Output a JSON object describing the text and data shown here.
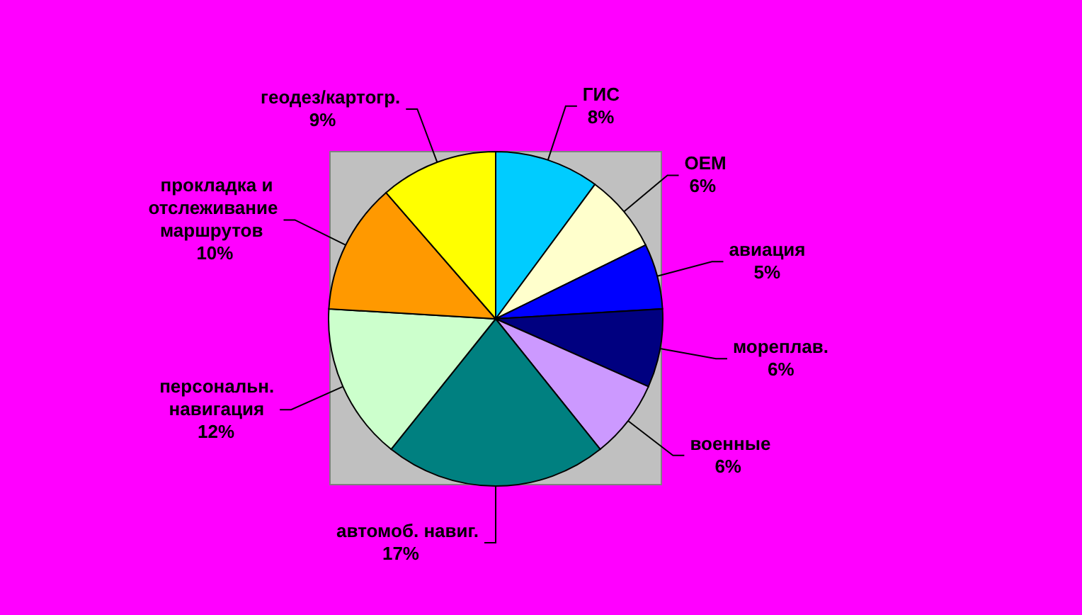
{
  "chart_data": {
    "type": "pie",
    "categories": [
      "ГИС",
      "OEM",
      "авиация",
      "мореплав.",
      "военные",
      "автомоб. навиг.",
      "персональн. навигация",
      "прокладка и отслеживание маршрутов",
      "геодез/картогр."
    ],
    "values": [
      8,
      6,
      5,
      6,
      6,
      17,
      12,
      10,
      9
    ],
    "value_labels": [
      "8%",
      "6%",
      "5%",
      "6%",
      "6%",
      "17%",
      "12%",
      "10%",
      "9%"
    ],
    "colors": [
      "#00ccff",
      "#ffffcc",
      "#0000ff",
      "#000080",
      "#cc99ff",
      "#008080",
      "#ccffcc",
      "#ff9900",
      "#ffff00"
    ]
  }
}
